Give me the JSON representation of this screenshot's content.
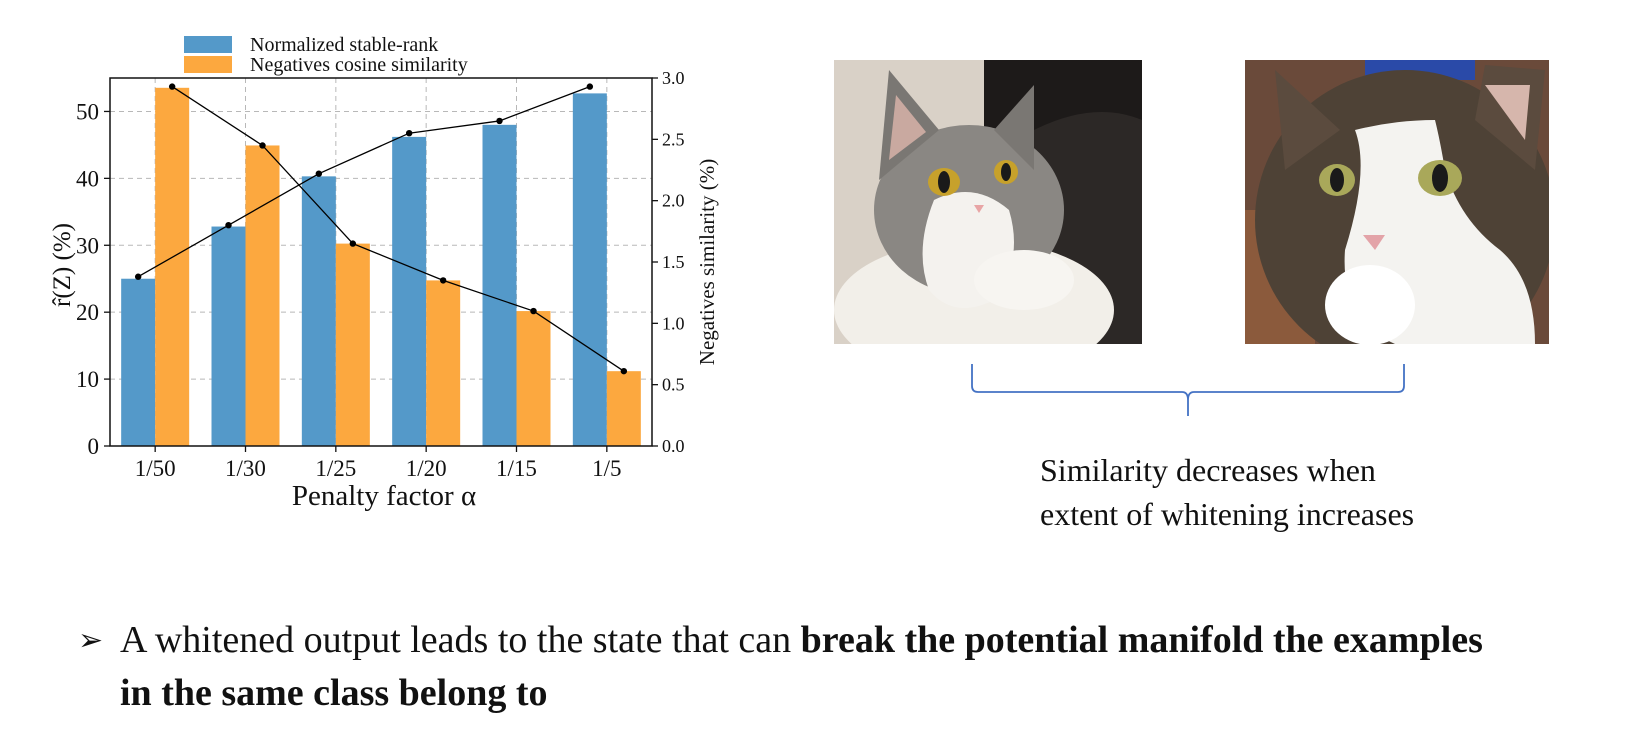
{
  "chart_data": {
    "type": "bar",
    "categories": [
      "1/50",
      "1/30",
      "1/25",
      "1/20",
      "1/15",
      "1/5"
    ],
    "series": [
      {
        "name": "Normalized stable-rank",
        "axis": "left",
        "color": "#5499c9",
        "values": [
          25.0,
          32.8,
          40.3,
          46.2,
          48.0,
          52.7
        ]
      },
      {
        "name": "Negatives cosine similarity",
        "axis": "right",
        "color": "#fca83f",
        "values": [
          2.92,
          2.45,
          1.65,
          1.35,
          1.1,
          0.61
        ]
      }
    ],
    "lines": [
      {
        "of": "Normalized stable-rank",
        "axis": "right",
        "color": "#000000",
        "values": [
          1.38,
          1.8,
          2.22,
          2.55,
          2.65,
          2.93
        ]
      },
      {
        "of": "Negatives cosine similarity",
        "axis": "right",
        "color": "#000000",
        "values": [
          2.93,
          2.45,
          1.65,
          1.35,
          1.1,
          0.61
        ]
      }
    ],
    "xlabel": "Penalty factor α",
    "ylabel": "r̂(Z) (%)",
    "y2label": "Negatives similarity (%)",
    "ylim": [
      0,
      55
    ],
    "y2lim": [
      0,
      3.0
    ],
    "yticks": [
      "0",
      "10",
      "20",
      "30",
      "40",
      "50"
    ],
    "y2ticks": [
      "0.0",
      "0.5",
      "1.0",
      "1.5",
      "2.0",
      "2.5",
      "3.0"
    ],
    "grid": true,
    "legend": "top"
  },
  "images": {
    "left": {
      "icon": "cat-photo-grey-white"
    },
    "right": {
      "icon": "cat-photo-tabby-white"
    }
  },
  "caption": {
    "line1": "Similarity decreases when",
    "line2": "extent of whitening increases"
  },
  "bullet": {
    "marker": "➢",
    "text_normal": "A whitened output leads to the state that can ",
    "text_bold": "break the potential manifold the examples in the same class belong to"
  }
}
